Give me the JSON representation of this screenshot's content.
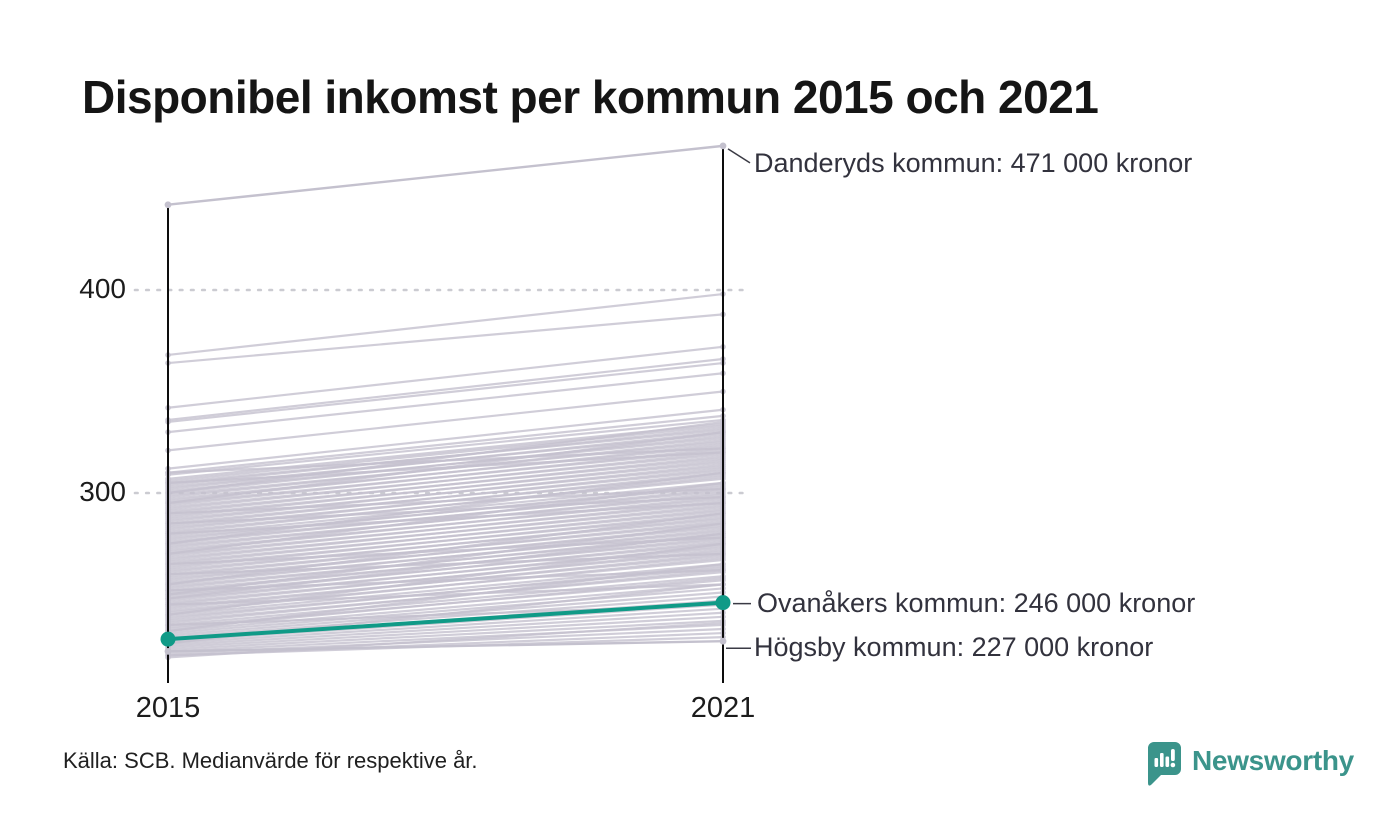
{
  "title": "Disponibel inkomst per kommun 2015 och 2021",
  "source_note": "Källa: SCB. Medianvärde för respektive år.",
  "brand": {
    "name": "Newsworthy",
    "color": "#3b948b",
    "icon": "newsworthy-speech-bubble-chart-icon"
  },
  "colors": {
    "background": "#ffffff",
    "highlight_line": "#109a87",
    "gray_line": "#c4c1ce",
    "axis": "#0d0d0d",
    "gridline": "#cbcbd1",
    "annotation_text": "#32323d",
    "leader_line": "#3a3a44"
  },
  "chart_data": {
    "type": "line",
    "subtype": "slope-chart",
    "title": "Disponibel inkomst per kommun 2015 och 2021",
    "x_categories": [
      "2015",
      "2021"
    ],
    "yticks": [
      {
        "value": 400,
        "label": "400"
      },
      {
        "value": 300,
        "label": "300"
      }
    ],
    "ylim": [
      205,
      480
    ],
    "grid": "dotted-horizontal",
    "annotations": [
      {
        "series": "Danderyds kommun",
        "label": "Danderyds kommun: 471 000 kronor",
        "values": [
          442,
          471
        ],
        "highlighted": false
      },
      {
        "series": "Ovanåkers kommun",
        "label": "Ovanåkers kommun: 246 000 kronor",
        "values": [
          228,
          246
        ],
        "highlighted": true
      },
      {
        "series": "Högsby kommun",
        "label": "Högsby kommun: 227 000 kronor",
        "values": [
          222,
          227
        ],
        "highlighted": false
      }
    ],
    "background_series": [
      [
        368,
        398
      ],
      [
        364,
        388
      ],
      [
        342,
        372
      ],
      [
        336,
        366
      ],
      [
        335,
        364
      ],
      [
        330,
        359
      ],
      [
        321,
        350
      ],
      [
        312,
        341
      ],
      [
        310,
        338
      ],
      [
        309,
        336
      ],
      [
        307,
        334
      ],
      [
        306,
        333
      ],
      [
        305,
        331
      ],
      [
        304,
        332
      ],
      [
        303,
        329
      ],
      [
        302,
        330
      ],
      [
        301,
        327
      ],
      [
        300,
        328
      ],
      [
        299,
        325
      ],
      [
        298,
        326
      ],
      [
        297,
        323
      ],
      [
        296,
        324
      ],
      [
        295,
        321
      ],
      [
        294,
        322
      ],
      [
        293,
        319
      ],
      [
        292,
        320
      ],
      [
        291,
        317
      ],
      [
        290,
        318
      ],
      [
        289,
        315
      ],
      [
        288,
        316
      ],
      [
        287,
        313
      ],
      [
        286,
        314
      ],
      [
        285,
        311
      ],
      [
        284,
        312
      ],
      [
        283,
        309
      ],
      [
        282,
        310
      ],
      [
        281,
        307
      ],
      [
        280,
        308
      ],
      [
        279,
        305
      ],
      [
        278,
        303
      ],
      [
        277,
        304
      ],
      [
        276,
        301
      ],
      [
        275,
        302
      ],
      [
        274,
        299
      ],
      [
        273,
        300
      ],
      [
        272,
        297
      ],
      [
        271,
        298
      ],
      [
        270,
        295
      ],
      [
        269,
        296
      ],
      [
        268,
        293
      ],
      [
        267,
        294
      ],
      [
        266,
        291
      ],
      [
        265,
        292
      ],
      [
        264,
        289
      ],
      [
        263,
        290
      ],
      [
        262,
        287
      ],
      [
        261,
        288
      ],
      [
        260,
        285
      ],
      [
        259,
        286
      ],
      [
        258,
        283
      ],
      [
        257,
        284
      ],
      [
        256,
        281
      ],
      [
        255,
        282
      ],
      [
        254,
        279
      ],
      [
        253,
        280
      ],
      [
        252,
        277
      ],
      [
        251,
        278
      ],
      [
        250,
        275
      ],
      [
        249,
        276
      ],
      [
        248,
        273
      ],
      [
        247,
        274
      ],
      [
        246,
        271
      ],
      [
        245,
        272
      ],
      [
        244,
        269
      ],
      [
        243,
        270
      ],
      [
        242,
        267
      ],
      [
        241,
        268
      ],
      [
        240,
        265
      ],
      [
        239,
        263
      ],
      [
        238,
        264
      ],
      [
        237,
        261
      ],
      [
        236,
        262
      ],
      [
        235,
        259
      ],
      [
        234,
        257
      ],
      [
        233,
        258
      ],
      [
        232,
        255
      ],
      [
        231,
        253
      ],
      [
        230,
        251
      ],
      [
        229,
        249
      ],
      [
        228,
        247
      ],
      [
        227,
        245
      ],
      [
        226,
        243
      ],
      [
        225,
        241
      ],
      [
        224,
        239
      ],
      [
        223,
        237
      ],
      [
        222,
        235
      ],
      [
        221,
        233
      ],
      [
        220,
        231
      ],
      [
        219,
        236
      ],
      [
        220,
        229
      ],
      [
        305,
        320
      ],
      [
        295,
        330
      ],
      [
        285,
        298
      ],
      [
        275,
        310
      ],
      [
        265,
        278
      ],
      [
        255,
        290
      ],
      [
        245,
        255
      ],
      [
        250,
        285
      ],
      [
        260,
        270
      ],
      [
        270,
        305
      ],
      [
        240,
        275
      ],
      [
        235,
        245
      ],
      [
        290,
        302
      ],
      [
        300,
        335
      ],
      [
        310,
        322
      ],
      [
        248,
        280
      ],
      [
        252,
        262
      ],
      [
        232,
        265
      ],
      [
        226,
        255
      ],
      [
        280,
        295
      ]
    ]
  }
}
